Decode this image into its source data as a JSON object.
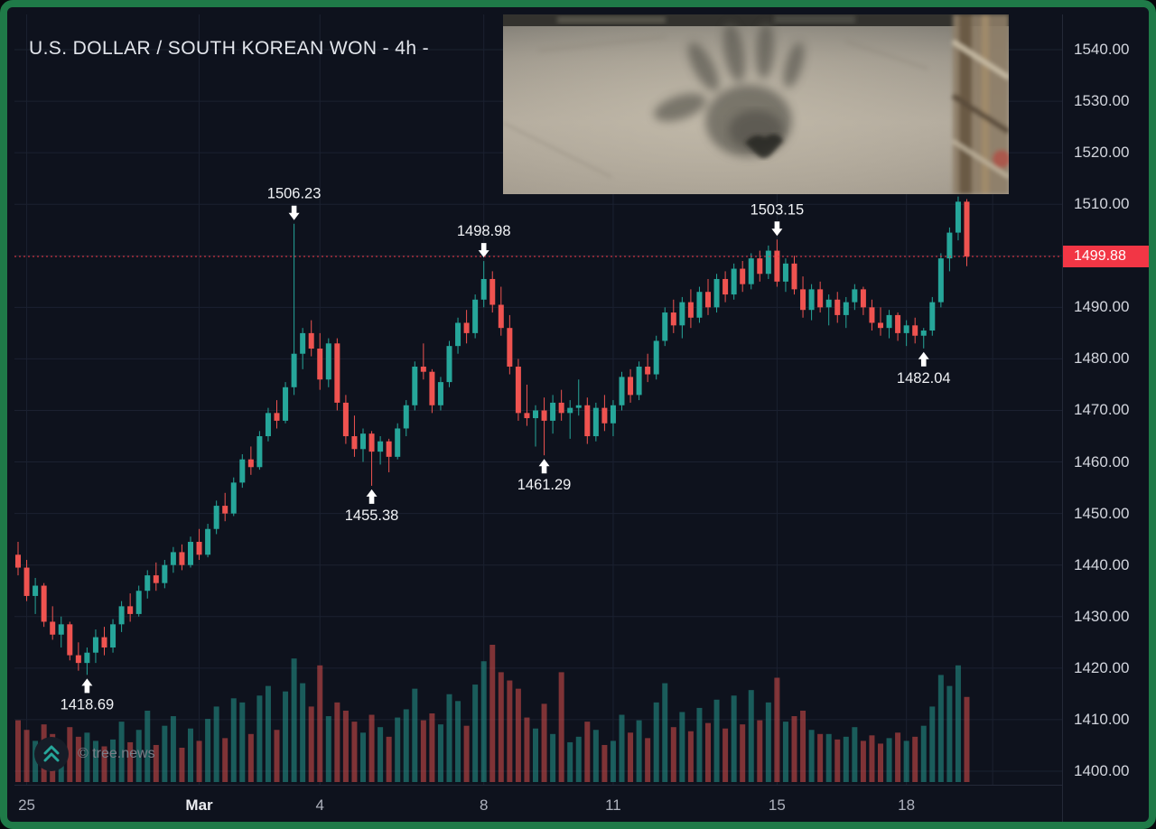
{
  "header": {
    "title": "U.S. DOLLAR / SOUTH KOREAN WON - 4h -"
  },
  "watermark": {
    "text": "© tree.news",
    "logo_icon": "double-chevron-up-icon",
    "logo_color": "#26a69a"
  },
  "price_axis": {
    "labels": [
      "1540.00",
      "1530.00",
      "1520.00",
      "1510.00",
      "1490.00",
      "1480.00",
      "1470.00",
      "1460.00",
      "1450.00",
      "1440.00",
      "1430.00",
      "1420.00",
      "1410.00",
      "1400.00"
    ],
    "last_price_tag": {
      "value": "1499.88",
      "color": "#f23645"
    }
  },
  "time_axis": {
    "ticks": [
      {
        "label": "25",
        "idx": 1
      },
      {
        "label": "Mar",
        "idx": 21,
        "bold": true
      },
      {
        "label": "4",
        "idx": 35
      },
      {
        "label": "8",
        "idx": 54
      },
      {
        "label": "11",
        "idx": 69
      },
      {
        "label": "15",
        "idx": 88
      },
      {
        "label": "18",
        "idx": 103
      },
      {
        "label": "",
        "idx": 113
      }
    ]
  },
  "overlay_photo": {
    "alt": "handprint pressed into dust on a concrete floor"
  },
  "frame": {
    "border_color": "#1f7a48",
    "background": "#0e121d"
  },
  "chart_data": {
    "type": "candlestick",
    "title": "U.S. DOLLAR / SOUTH KOREAN WON",
    "interval": "4h",
    "ylim": [
      1398,
      1545
    ],
    "price_gridlines": [
      1400,
      1410,
      1420,
      1430,
      1440,
      1450,
      1460,
      1470,
      1480,
      1490,
      1500,
      1510,
      1520,
      1530,
      1540
    ],
    "last_price": 1499.88,
    "colors": {
      "up": "#26a69a",
      "down": "#ef5350",
      "last_price_line": "#f23645",
      "grid": "#1b2130"
    },
    "annotations": [
      {
        "idx": 8,
        "price": 1418.69,
        "label": "1418.69",
        "dir": "up"
      },
      {
        "idx": 32,
        "price": 1506.23,
        "label": "1506.23",
        "dir": "down"
      },
      {
        "idx": 41,
        "price": 1455.38,
        "label": "1455.38",
        "dir": "up"
      },
      {
        "idx": 54,
        "price": 1498.98,
        "label": "1498.98",
        "dir": "down"
      },
      {
        "idx": 61,
        "price": 1461.29,
        "label": "1461.29",
        "dir": "up"
      },
      {
        "idx": 88,
        "price": 1503.15,
        "label": "1503.15",
        "dir": "down"
      },
      {
        "idx": 105,
        "price": 1482.04,
        "label": "1482.04",
        "dir": "up"
      }
    ],
    "candles": [
      [
        1442.0,
        1444.5,
        1438.0,
        1439.5,
        45
      ],
      [
        1439.5,
        1441.0,
        1433.0,
        1434.0,
        38
      ],
      [
        1434.0,
        1437.5,
        1430.5,
        1436.0,
        30
      ],
      [
        1436.0,
        1436.5,
        1428.0,
        1429.0,
        42
      ],
      [
        1429.0,
        1432.0,
        1425.5,
        1426.5,
        35
      ],
      [
        1426.5,
        1430.0,
        1424.0,
        1428.5,
        28
      ],
      [
        1428.5,
        1429.0,
        1421.5,
        1422.5,
        40
      ],
      [
        1422.5,
        1425.0,
        1419.5,
        1421.0,
        33
      ],
      [
        1421.0,
        1424.0,
        1418.69,
        1423.0,
        36
      ],
      [
        1423.0,
        1427.5,
        1421.0,
        1426.0,
        30
      ],
      [
        1426.0,
        1428.0,
        1422.5,
        1424.0,
        26
      ],
      [
        1424.0,
        1429.5,
        1423.0,
        1428.5,
        31
      ],
      [
        1428.5,
        1433.0,
        1427.0,
        1432.0,
        44
      ],
      [
        1432.0,
        1434.5,
        1429.0,
        1430.5,
        29
      ],
      [
        1430.5,
        1436.0,
        1430.0,
        1435.0,
        38
      ],
      [
        1435.0,
        1439.0,
        1433.5,
        1438.0,
        52
      ],
      [
        1438.0,
        1440.5,
        1435.0,
        1436.5,
        27
      ],
      [
        1436.5,
        1441.0,
        1435.5,
        1440.0,
        41
      ],
      [
        1440.0,
        1443.5,
        1438.5,
        1442.5,
        48
      ],
      [
        1442.5,
        1444.0,
        1439.0,
        1440.0,
        25
      ],
      [
        1440.0,
        1445.5,
        1439.5,
        1444.5,
        39
      ],
      [
        1444.5,
        1447.0,
        1441.0,
        1442.0,
        30
      ],
      [
        1442.0,
        1448.0,
        1441.5,
        1447.0,
        46
      ],
      [
        1447.0,
        1452.5,
        1446.0,
        1451.5,
        55
      ],
      [
        1451.5,
        1454.0,
        1448.5,
        1450.0,
        32
      ],
      [
        1450.0,
        1457.0,
        1449.5,
        1456.0,
        61
      ],
      [
        1456.0,
        1461.5,
        1455.0,
        1460.5,
        58
      ],
      [
        1460.5,
        1463.0,
        1457.5,
        1459.0,
        35
      ],
      [
        1459.0,
        1466.0,
        1458.5,
        1465.0,
        63
      ],
      [
        1465.0,
        1470.5,
        1464.0,
        1469.5,
        70
      ],
      [
        1469.5,
        1472.0,
        1466.5,
        1468.0,
        38
      ],
      [
        1468.0,
        1475.5,
        1467.5,
        1474.5,
        66
      ],
      [
        1474.5,
        1506.23,
        1473.0,
        1481.0,
        90
      ],
      [
        1481.0,
        1486.0,
        1478.0,
        1485.0,
        72
      ],
      [
        1485.0,
        1487.5,
        1480.5,
        1482.0,
        55
      ],
      [
        1482.0,
        1485.0,
        1474.0,
        1476.0,
        85
      ],
      [
        1476.0,
        1484.0,
        1474.5,
        1483.0,
        48
      ],
      [
        1483.0,
        1484.0,
        1470.0,
        1471.5,
        58
      ],
      [
        1471.5,
        1473.0,
        1463.5,
        1465.0,
        52
      ],
      [
        1465.0,
        1469.0,
        1461.0,
        1462.5,
        44
      ],
      [
        1462.5,
        1466.5,
        1460.0,
        1465.5,
        36
      ],
      [
        1465.5,
        1466.0,
        1455.38,
        1462.0,
        49
      ],
      [
        1462.0,
        1465.0,
        1459.5,
        1464.0,
        40
      ],
      [
        1464.0,
        1464.5,
        1458.0,
        1461.0,
        33
      ],
      [
        1461.0,
        1467.5,
        1460.5,
        1466.5,
        47
      ],
      [
        1466.5,
        1472.0,
        1465.0,
        1471.0,
        53
      ],
      [
        1471.0,
        1479.5,
        1470.0,
        1478.5,
        68
      ],
      [
        1478.5,
        1483.0,
        1476.0,
        1477.5,
        45
      ],
      [
        1477.5,
        1478.0,
        1469.5,
        1471.0,
        50
      ],
      [
        1471.0,
        1476.5,
        1470.0,
        1475.5,
        42
      ],
      [
        1475.5,
        1483.5,
        1474.5,
        1482.5,
        64
      ],
      [
        1482.5,
        1488.0,
        1481.0,
        1487.0,
        59
      ],
      [
        1487.0,
        1489.5,
        1483.0,
        1485.0,
        41
      ],
      [
        1485.0,
        1492.5,
        1484.0,
        1491.5,
        71
      ],
      [
        1491.5,
        1498.98,
        1490.0,
        1495.5,
        88
      ],
      [
        1495.5,
        1497.0,
        1489.0,
        1490.5,
        100
      ],
      [
        1490.5,
        1494.0,
        1484.5,
        1486.0,
        80
      ],
      [
        1486.0,
        1488.5,
        1477.0,
        1478.5,
        74
      ],
      [
        1478.5,
        1480.0,
        1468.0,
        1469.5,
        68
      ],
      [
        1469.5,
        1475.0,
        1467.0,
        1468.5,
        47
      ],
      [
        1468.5,
        1471.0,
        1463.0,
        1470.0,
        39
      ],
      [
        1470.0,
        1472.5,
        1461.29,
        1468.0,
        57
      ],
      [
        1468.0,
        1473.0,
        1465.5,
        1471.5,
        35
      ],
      [
        1471.5,
        1474.0,
        1468.0,
        1469.5,
        80
      ],
      [
        1469.5,
        1472.0,
        1464.5,
        1470.5,
        29
      ],
      [
        1470.5,
        1476.0,
        1469.0,
        1471.0,
        33
      ],
      [
        1471.0,
        1472.5,
        1463.5,
        1465.0,
        44
      ],
      [
        1465.0,
        1471.5,
        1464.0,
        1470.5,
        38
      ],
      [
        1470.5,
        1473.0,
        1466.0,
        1467.5,
        27
      ],
      [
        1467.5,
        1472.0,
        1465.0,
        1471.0,
        30
      ],
      [
        1471.0,
        1477.5,
        1470.0,
        1476.5,
        49
      ],
      [
        1476.5,
        1478.0,
        1471.5,
        1473.0,
        36
      ],
      [
        1473.0,
        1479.5,
        1472.0,
        1478.5,
        45
      ],
      [
        1478.5,
        1481.0,
        1475.5,
        1477.0,
        32
      ],
      [
        1477.0,
        1484.5,
        1476.0,
        1483.5,
        58
      ],
      [
        1483.5,
        1490.0,
        1482.5,
        1489.0,
        72
      ],
      [
        1489.0,
        1491.5,
        1485.0,
        1486.5,
        40
      ],
      [
        1486.5,
        1492.0,
        1484.0,
        1491.0,
        51
      ],
      [
        1491.0,
        1493.5,
        1486.0,
        1488.0,
        37
      ],
      [
        1488.0,
        1494.0,
        1487.0,
        1493.0,
        54
      ],
      [
        1493.0,
        1495.5,
        1488.5,
        1490.0,
        43
      ],
      [
        1490.0,
        1496.5,
        1489.0,
        1495.5,
        60
      ],
      [
        1495.5,
        1497.0,
        1491.0,
        1492.5,
        39
      ],
      [
        1492.5,
        1498.5,
        1491.5,
        1497.5,
        63
      ],
      [
        1497.5,
        1499.0,
        1493.0,
        1494.5,
        42
      ],
      [
        1494.5,
        1500.5,
        1493.5,
        1499.5,
        67
      ],
      [
        1499.5,
        1501.0,
        1495.0,
        1496.5,
        45
      ],
      [
        1496.5,
        1502.0,
        1495.5,
        1501.0,
        58
      ],
      [
        1501.0,
        1503.15,
        1494.0,
        1495.0,
        76
      ],
      [
        1495.0,
        1499.5,
        1493.0,
        1498.5,
        44
      ],
      [
        1498.5,
        1500.0,
        1492.5,
        1493.5,
        48
      ],
      [
        1493.5,
        1496.0,
        1488.0,
        1489.5,
        52
      ],
      [
        1489.5,
        1494.5,
        1487.5,
        1493.5,
        38
      ],
      [
        1493.5,
        1495.0,
        1489.0,
        1490.0,
        35
      ],
      [
        1490.0,
        1492.5,
        1486.5,
        1491.5,
        35
      ],
      [
        1491.5,
        1493.0,
        1487.0,
        1488.5,
        31
      ],
      [
        1488.5,
        1492.0,
        1486.0,
        1491.0,
        33
      ],
      [
        1491.0,
        1494.5,
        1489.5,
        1493.5,
        40
      ],
      [
        1493.5,
        1494.0,
        1488.5,
        1490.0,
        30
      ],
      [
        1490.0,
        1491.5,
        1485.5,
        1487.0,
        34
      ],
      [
        1487.0,
        1490.0,
        1484.5,
        1486.0,
        28
      ],
      [
        1486.0,
        1489.5,
        1484.0,
        1488.5,
        32
      ],
      [
        1488.5,
        1489.0,
        1483.5,
        1485.0,
        36
      ],
      [
        1485.0,
        1487.5,
        1482.5,
        1486.5,
        30
      ],
      [
        1486.5,
        1488.0,
        1483.0,
        1484.5,
        33
      ],
      [
        1484.5,
        1486.0,
        1482.04,
        1485.5,
        41
      ],
      [
        1485.5,
        1492.0,
        1484.5,
        1491.0,
        55
      ],
      [
        1491.0,
        1500.5,
        1490.0,
        1499.5,
        78
      ],
      [
        1499.5,
        1505.5,
        1497.0,
        1504.5,
        70
      ],
      [
        1504.5,
        1511.5,
        1503.0,
        1510.5,
        85
      ],
      [
        1510.5,
        1511.0,
        1498.0,
        1499.88,
        62
      ]
    ]
  }
}
